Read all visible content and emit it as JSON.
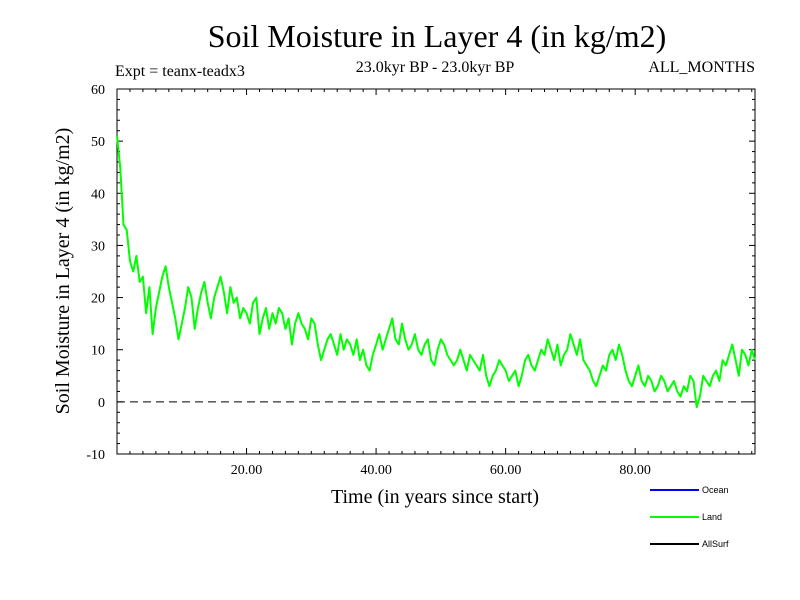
{
  "chart_data": {
    "type": "line",
    "title": "Soil Moisture in Layer 4 (in kg/m2)",
    "subtitle_left": "Expt = teanx-teadx3",
    "subtitle_center": "23.0kyr BP - 23.0kyr BP",
    "subtitle_right": "ALL_MONTHS",
    "xlabel": "Time (in years since start)",
    "ylabel": "Soil Moisture in Layer 4 (in kg/m2)",
    "xlim": [
      0,
      98.5
    ],
    "ylim": [
      -10,
      60
    ],
    "xticks": [
      20,
      40,
      60,
      80
    ],
    "xtick_labels": [
      "20.00",
      "40.00",
      "60.00",
      "80.00"
    ],
    "yticks": [
      -10,
      0,
      10,
      20,
      30,
      40,
      50,
      60
    ],
    "ytick_labels": [
      "-10",
      "0",
      "10",
      "20",
      "30",
      "40",
      "50",
      "60"
    ],
    "reference_line": {
      "y": 0,
      "style": "dashed"
    },
    "legend": [
      {
        "name": "Ocean",
        "color": "#0000ff"
      },
      {
        "name": "Land",
        "color": "#00ff00"
      },
      {
        "name": "AllSurf",
        "color": "#000000"
      }
    ],
    "series": [
      {
        "name": "Land",
        "color": "#00ff00",
        "x": [
          0,
          0.5,
          1,
          1.5,
          2,
          2.5,
          3,
          3.5,
          4,
          4.5,
          5,
          5.5,
          6,
          6.5,
          7,
          7.5,
          8,
          8.5,
          9,
          9.5,
          10,
          10.5,
          11,
          11.5,
          12,
          12.5,
          13,
          13.5,
          14,
          14.5,
          15,
          15.5,
          16,
          16.5,
          17,
          17.5,
          18,
          18.5,
          19,
          19.5,
          20,
          20.5,
          21,
          21.5,
          22,
          22.5,
          23,
          23.5,
          24,
          24.5,
          25,
          25.5,
          26,
          26.5,
          27,
          27.5,
          28,
          28.5,
          29,
          29.5,
          30,
          30.5,
          31,
          31.5,
          32,
          32.5,
          33,
          33.5,
          34,
          34.5,
          35,
          35.5,
          36,
          36.5,
          37,
          37.5,
          38,
          38.5,
          39,
          39.5,
          40,
          40.5,
          41,
          41.5,
          42,
          42.5,
          43,
          43.5,
          44,
          44.5,
          45,
          45.5,
          46,
          46.5,
          47,
          47.5,
          48,
          48.5,
          49,
          49.5,
          50,
          50.5,
          51,
          51.5,
          52,
          52.5,
          53,
          53.5,
          54,
          54.5,
          55,
          55.5,
          56,
          56.5,
          57,
          57.5,
          58,
          58.5,
          59,
          59.5,
          60,
          60.5,
          61,
          61.5,
          62,
          62.5,
          63,
          63.5,
          64,
          64.5,
          65,
          65.5,
          66,
          66.5,
          67,
          67.5,
          68,
          68.5,
          69,
          69.5,
          70,
          70.5,
          71,
          71.5,
          72,
          72.5,
          73,
          73.5,
          74,
          74.5,
          75,
          75.5,
          76,
          76.5,
          77,
          77.5,
          78,
          78.5,
          79,
          79.5,
          80,
          80.5,
          81,
          81.5,
          82,
          82.5,
          83,
          83.5,
          84,
          84.5,
          85,
          85.5,
          86,
          86.5,
          87,
          87.5,
          88,
          88.5,
          89,
          89.5,
          90,
          90.5,
          91,
          91.5,
          92,
          92.5,
          93,
          93.5,
          94,
          94.5,
          95,
          95.5,
          96,
          96.5,
          97,
          97.5,
          98,
          98.5
        ],
        "y": [
          51,
          45,
          34,
          33,
          27,
          25,
          28,
          23,
          24,
          17,
          22,
          13,
          18,
          21,
          24,
          26,
          22,
          19,
          16,
          12,
          15,
          18,
          22,
          20,
          14,
          18,
          21,
          23,
          19,
          16,
          20,
          22,
          24,
          21,
          17,
          22,
          19,
          20,
          16,
          18,
          17,
          15,
          19,
          20,
          13,
          16,
          18,
          14,
          17,
          15,
          18,
          17,
          14,
          16,
          11,
          15,
          17,
          15,
          14,
          12,
          16,
          15,
          11,
          8,
          10,
          12,
          13,
          11,
          9,
          13,
          10,
          12,
          11,
          9,
          12,
          8,
          10,
          7,
          6,
          9,
          11,
          13,
          10,
          12,
          14,
          16,
          12,
          11,
          15,
          12,
          10,
          11,
          13,
          10,
          9,
          11,
          12,
          8,
          7,
          10,
          12,
          11,
          9,
          8,
          7,
          8,
          10,
          8,
          6,
          9,
          8,
          7,
          6,
          9,
          5,
          3,
          5,
          6,
          8,
          7,
          6,
          4,
          5,
          6,
          3,
          5,
          8,
          9,
          7,
          6,
          8,
          10,
          9,
          12,
          10,
          8,
          11,
          7,
          9,
          10,
          13,
          11,
          9,
          12,
          8,
          7,
          6,
          4,
          3,
          5,
          7,
          6,
          9,
          10,
          8,
          11,
          9,
          6,
          4,
          3,
          5,
          7,
          4,
          3,
          5,
          4,
          2,
          3,
          5,
          4,
          2,
          3,
          4,
          2,
          1,
          3,
          2,
          5,
          4,
          -1,
          1,
          5,
          4,
          3,
          5,
          6,
          4,
          8,
          7,
          9,
          11,
          8,
          5,
          10,
          9,
          7,
          10,
          8
        ]
      }
    ]
  }
}
